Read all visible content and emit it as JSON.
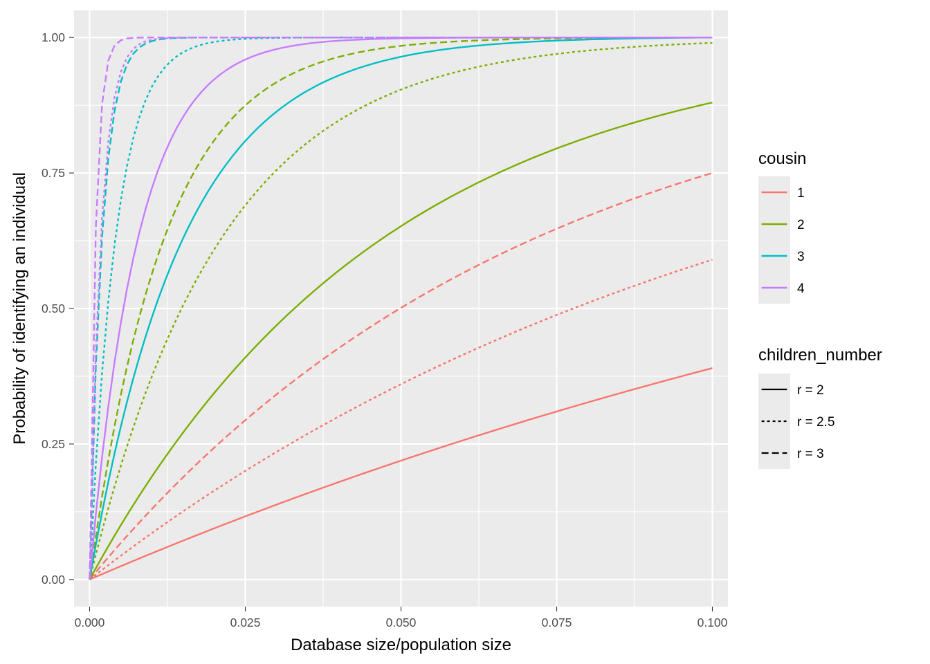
{
  "chart_data": {
    "type": "line",
    "title": "",
    "xlabel": "Database size/population size",
    "ylabel": "Probability of identifying an individual",
    "xlim": [
      -0.0025,
      0.1025
    ],
    "ylim": [
      -0.05,
      1.05
    ],
    "x_ticks": [
      0.0,
      0.025,
      0.05,
      0.075,
      0.1
    ],
    "x_tick_labels": [
      "0.000",
      "0.025",
      "0.050",
      "0.075",
      "0.100"
    ],
    "y_ticks": [
      0.0,
      0.25,
      0.5,
      0.75,
      1.0
    ],
    "y_tick_labels": [
      "0.00",
      "0.25",
      "0.50",
      "0.75",
      "1.00"
    ],
    "grid": true,
    "legend_position": "right",
    "legend_colour": {
      "title": "cousin",
      "entries": [
        {
          "label": "1",
          "color": "#F8766D"
        },
        {
          "label": "2",
          "color": "#7CAE00"
        },
        {
          "label": "3",
          "color": "#00BFC4"
        },
        {
          "label": "4",
          "color": "#C77CFF"
        }
      ]
    },
    "legend_linetype": {
      "title": "children_number",
      "entries": [
        {
          "label": "r = 2",
          "dash": "solid"
        },
        {
          "label": "r = 2.5",
          "dash": "dotted"
        },
        {
          "label": "r = 3",
          "dash": "dashed"
        }
      ]
    },
    "x_range": [
      0,
      0.1
    ],
    "series": [
      {
        "cousin": "1",
        "children_number": "r = 2",
        "end_value": 0.39,
        "rate": 5.0
      },
      {
        "cousin": "1",
        "children_number": "r = 2.5",
        "end_value": 0.59,
        "rate": 9.0
      },
      {
        "cousin": "1",
        "children_number": "r = 3",
        "end_value": 0.75,
        "rate": 14.0
      },
      {
        "cousin": "2",
        "children_number": "r = 2",
        "end_value": 0.88,
        "rate": 21.0
      },
      {
        "cousin": "2",
        "children_number": "r = 2.5",
        "end_value": 0.99,
        "rate": 47.0
      },
      {
        "cousin": "2",
        "children_number": "r = 3",
        "end_value": 1.0,
        "rate": 83.0
      },
      {
        "cousin": "3",
        "children_number": "r = 2",
        "end_value": 1.0,
        "rate": 66.0
      },
      {
        "cousin": "3",
        "children_number": "r = 2.5",
        "end_value": 1.0,
        "rate": 240.0
      },
      {
        "cousin": "3",
        "children_number": "r = 3",
        "end_value": 1.0,
        "rate": 500.0
      },
      {
        "cousin": "4",
        "children_number": "r = 2",
        "end_value": 1.0,
        "rate": 128.0
      },
      {
        "cousin": "4",
        "children_number": "r = 2.5",
        "end_value": 1.0,
        "rate": 550.0
      },
      {
        "cousin": "4",
        "children_number": "r = 3",
        "end_value": 1.0,
        "rate": 1050.0
      }
    ]
  }
}
